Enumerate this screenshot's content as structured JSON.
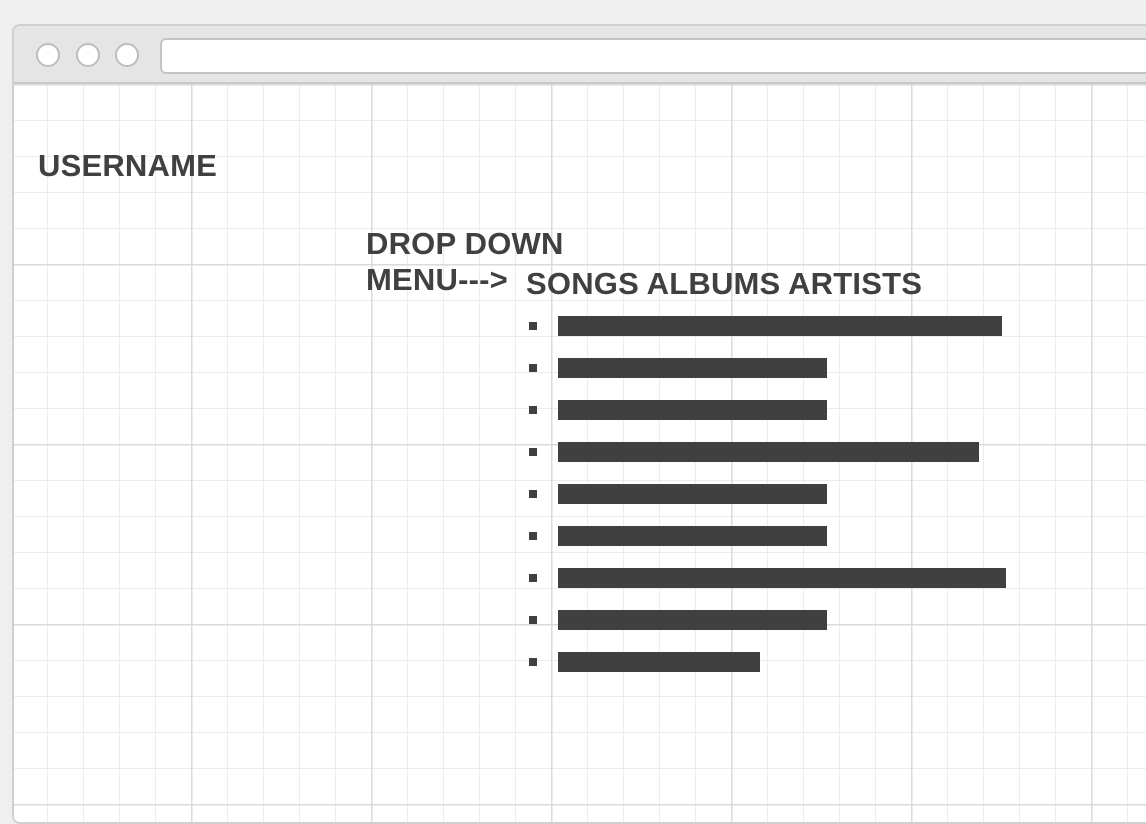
{
  "browser": {
    "window_controls": [
      "close",
      "minimize",
      "maximize"
    ],
    "address_value": ""
  },
  "page": {
    "username_label": "USERNAME",
    "dropdown_annotation": {
      "line1": "DROP DOWN",
      "line2": "MENU--->"
    },
    "menu_tabs_label": "SONGS ALBUMS ARTISTS",
    "list_items": [
      {
        "text_bar_fraction": 0.99
      },
      {
        "text_bar_fraction": 0.6
      },
      {
        "text_bar_fraction": 0.6
      },
      {
        "text_bar_fraction": 0.94
      },
      {
        "text_bar_fraction": 0.6
      },
      {
        "text_bar_fraction": 0.6
      },
      {
        "text_bar_fraction": 1.0
      },
      {
        "text_bar_fraction": 0.6
      },
      {
        "text_bar_fraction": 0.45
      }
    ]
  },
  "colors": {
    "ink": "#404040",
    "grid_minor": "#ececec",
    "grid_major": "#dadada",
    "chrome": "#e5e5e5"
  }
}
